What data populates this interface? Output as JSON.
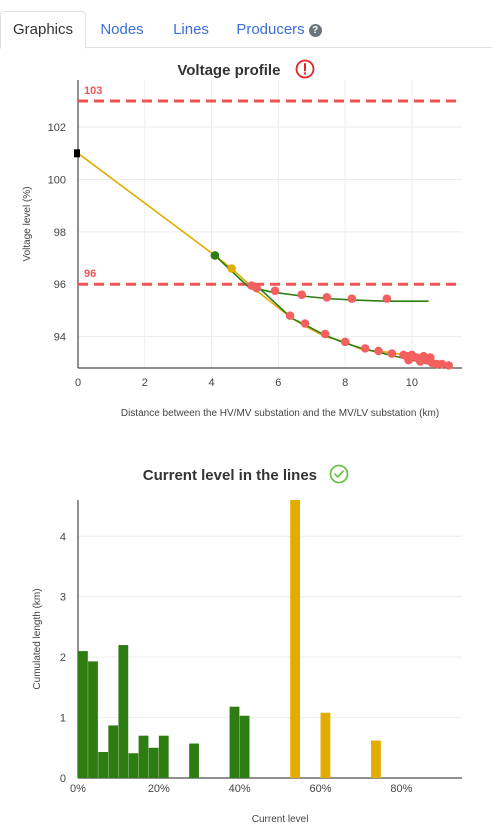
{
  "tabs": [
    {
      "label": "Graphics",
      "active": true
    },
    {
      "label": "Nodes",
      "active": false
    },
    {
      "label": "Lines",
      "active": false
    },
    {
      "label": "Producers",
      "active": false
    }
  ],
  "help_icon": "question-circle-icon",
  "colors": {
    "tab_link": "#3b6fd8",
    "limit": "#f05555",
    "orange": "#e3ac00",
    "green": "#2e7d12",
    "red_point": "#f46060",
    "warning": "#e02424",
    "ok": "#6cc24a"
  },
  "voltage_chart": {
    "title": "Voltage profile",
    "status_icon": "exclamation-circle-icon",
    "chart_data": {
      "type": "line",
      "xlabel": "Distance between the HV/MV substation and the MV/LV substation (km)",
      "ylabel": "Voltage level (%)",
      "xlim": [
        0,
        11.5
      ],
      "ylim": [
        92.8,
        103.8
      ],
      "xticks": [
        0,
        2,
        4,
        6,
        8,
        10
      ],
      "yticks": [
        94,
        96,
        98,
        100,
        102
      ],
      "limits": [
        {
          "label": "103",
          "value": 103
        },
        {
          "label": "96",
          "value": 96
        }
      ],
      "source_marker": {
        "x": 0,
        "y": 101
      },
      "series": [
        {
          "color": "orange",
          "x": [
            0,
            4.1,
            4.6,
            5.2,
            6.4,
            6.8,
            7.4,
            8.0,
            8.5,
            8.9,
            9.3,
            9.8,
            10.2,
            10.6,
            11.0
          ],
          "y": [
            101,
            97.1,
            96.6,
            95.9,
            94.7,
            94.4,
            94.0,
            93.8,
            93.5,
            93.45,
            93.4,
            93.3,
            93.2,
            93.0,
            92.95
          ]
        },
        {
          "color": "green",
          "x": [
            4.1,
            5.1,
            5.8,
            6.7,
            7.5,
            8.2,
            9.2,
            10.5
          ],
          "y": [
            97.1,
            95.9,
            95.7,
            95.55,
            95.45,
            95.4,
            95.35,
            95.35
          ]
        },
        {
          "color": "green",
          "x": [
            5.3,
            6.4,
            6.8,
            7.4,
            8.0,
            8.5,
            9.0,
            9.5,
            10.0,
            10.5,
            11.0
          ],
          "y": [
            96.0,
            94.7,
            94.45,
            94.05,
            93.75,
            93.55,
            93.4,
            93.25,
            93.1,
            92.95,
            92.9
          ]
        }
      ],
      "points": [
        {
          "x": 4.1,
          "y": 97.1,
          "color": "green"
        },
        {
          "x": 4.6,
          "y": 96.6,
          "color": "orange"
        },
        {
          "x": 5.2,
          "y": 95.95,
          "color": "red_point"
        },
        {
          "x": 5.35,
          "y": 95.85,
          "color": "red_point"
        },
        {
          "x": 5.9,
          "y": 95.75,
          "color": "red_point"
        },
        {
          "x": 6.7,
          "y": 95.6,
          "color": "red_point"
        },
        {
          "x": 7.45,
          "y": 95.5,
          "color": "red_point"
        },
        {
          "x": 8.2,
          "y": 95.45,
          "color": "red_point"
        },
        {
          "x": 9.25,
          "y": 95.45,
          "color": "red_point"
        },
        {
          "x": 6.35,
          "y": 94.8,
          "color": "red_point"
        },
        {
          "x": 6.8,
          "y": 94.5,
          "color": "red_point"
        },
        {
          "x": 7.4,
          "y": 94.1,
          "color": "red_point"
        },
        {
          "x": 8.0,
          "y": 93.8,
          "color": "red_point"
        },
        {
          "x": 8.6,
          "y": 93.55,
          "color": "red_point"
        },
        {
          "x": 9.0,
          "y": 93.45,
          "color": "red_point"
        },
        {
          "x": 9.4,
          "y": 93.35,
          "color": "red_point"
        },
        {
          "x": 9.75,
          "y": 93.3,
          "color": "red_point"
        },
        {
          "x": 9.85,
          "y": 93.25,
          "color": "red_point"
        },
        {
          "x": 9.9,
          "y": 93.1,
          "color": "red_point"
        },
        {
          "x": 10.0,
          "y": 93.3,
          "color": "red_point"
        },
        {
          "x": 10.15,
          "y": 93.2,
          "color": "red_point"
        },
        {
          "x": 10.25,
          "y": 93.05,
          "color": "red_point"
        },
        {
          "x": 10.35,
          "y": 93.25,
          "color": "red_point"
        },
        {
          "x": 10.45,
          "y": 93.1,
          "color": "red_point"
        },
        {
          "x": 10.55,
          "y": 93.2,
          "color": "red_point"
        },
        {
          "x": 10.6,
          "y": 93.0,
          "color": "red_point"
        },
        {
          "x": 10.75,
          "y": 92.95,
          "color": "red_point"
        },
        {
          "x": 10.9,
          "y": 92.95,
          "color": "red_point"
        },
        {
          "x": 11.1,
          "y": 92.9,
          "color": "red_point"
        }
      ]
    }
  },
  "current_chart": {
    "title": "Current level in the lines",
    "status_icon": "check-circle-icon",
    "chart_data": {
      "type": "bar",
      "xlabel": "Current level",
      "ylabel": "Cumulated length (km)",
      "xlim": [
        0,
        95
      ],
      "ylim": [
        0,
        4.6
      ],
      "xticks": [
        0,
        20,
        40,
        60,
        80
      ],
      "xtick_labels": [
        "0%",
        "20%",
        "40%",
        "60%",
        "80%"
      ],
      "yticks": [
        0,
        1,
        2,
        3,
        4
      ],
      "bin_width": 2.5,
      "bars": [
        {
          "x": 0,
          "value": 2.1,
          "color": "green"
        },
        {
          "x": 2.5,
          "value": 1.93,
          "color": "green"
        },
        {
          "x": 5,
          "value": 0.43,
          "color": "green"
        },
        {
          "x": 7.5,
          "value": 0.87,
          "color": "green"
        },
        {
          "x": 10,
          "value": 2.2,
          "color": "green"
        },
        {
          "x": 12.5,
          "value": 0.41,
          "color": "green"
        },
        {
          "x": 15,
          "value": 0.7,
          "color": "green"
        },
        {
          "x": 17.5,
          "value": 0.5,
          "color": "green"
        },
        {
          "x": 20,
          "value": 0.7,
          "color": "green"
        },
        {
          "x": 27.5,
          "value": 0.57,
          "color": "green"
        },
        {
          "x": 37.5,
          "value": 1.18,
          "color": "green"
        },
        {
          "x": 40,
          "value": 1.03,
          "color": "green"
        },
        {
          "x": 52.5,
          "value": 4.6,
          "color": "orange"
        },
        {
          "x": 60,
          "value": 1.08,
          "color": "orange"
        },
        {
          "x": 72.5,
          "value": 0.62,
          "color": "orange"
        }
      ]
    }
  }
}
